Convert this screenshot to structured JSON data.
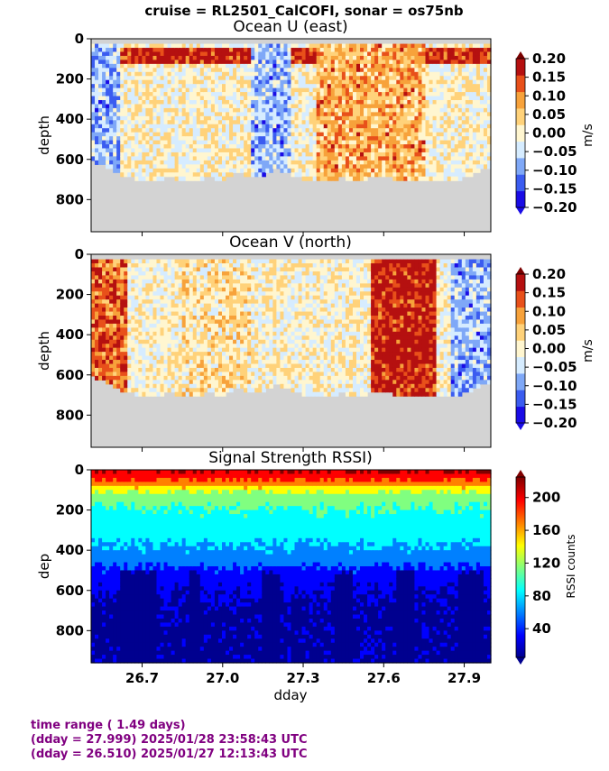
{
  "figure": {
    "suptitle": "cruise = RL2501_CalCOFI,  sonar = os75nb",
    "footer_lines": [
      "time range ( 1.49 days)",
      "(dday = 27.999) 2025/01/28 23:58:43 UTC",
      "(dday = 26.510) 2025/01/27 12:13:43 UTC"
    ],
    "text_color": "#800080"
  },
  "chart_data": [
    {
      "type": "heatmap",
      "title": "Ocean U (east)",
      "ylabel": "depth",
      "xlabel": "",
      "xlim": [
        26.51,
        27.999
      ],
      "ylim": [
        960,
        0
      ],
      "yticks": [
        "0",
        "200",
        "400",
        "600",
        "800"
      ],
      "colorbar": {
        "label": "m/s",
        "ticks": [
          "0.20",
          "0.15",
          "0.10",
          "0.05",
          "0.00",
          "−0.05",
          "−0.10",
          "−0.15",
          "−0.20"
        ],
        "range": [
          -0.2,
          0.2
        ],
        "colors": [
          "#1a0ce6",
          "#3b5cf0",
          "#7fa8f7",
          "#d6ecff",
          "#fff6d0",
          "#ffd27a",
          "#f7a23b",
          "#e8501a",
          "#b51010"
        ]
      },
      "no_data_color": "#d3d3d3",
      "bottom_depth_profile": {
        "dday": [
          26.51,
          26.55,
          26.6,
          26.65,
          26.7,
          26.75,
          26.8,
          26.85,
          26.9,
          26.95,
          27.0,
          27.05,
          27.1,
          27.15,
          27.2,
          27.25,
          27.3,
          27.35,
          27.4,
          27.45,
          27.5,
          27.55,
          27.6,
          27.65,
          27.7,
          27.75,
          27.8,
          27.85,
          27.9,
          27.95,
          27.999
        ],
        "depth": [
          600,
          610,
          650,
          680,
          690,
          690,
          680,
          690,
          690,
          680,
          690,
          660,
          670,
          670,
          640,
          660,
          690,
          700,
          690,
          680,
          700,
          680,
          670,
          690,
          700,
          700,
          720,
          730,
          680,
          650,
          630
        ]
      },
      "pattern": {
        "near_surface_band": {
          "depth_range": [
            30,
            120
          ],
          "dominant_values": [
            0.15,
            0.2
          ],
          "description_source": "red streaks"
        },
        "early_western_columns": {
          "dday_range": [
            26.51,
            26.62
          ],
          "dominant_values": [
            -0.1,
            -0.05
          ]
        },
        "mid_columns": {
          "dday_range": [
            27.1,
            27.25
          ],
          "dominant_values": [
            -0.1,
            -0.05
          ]
        },
        "eastern_columns": {
          "dday_range": [
            27.35,
            27.75
          ],
          "dominant_values": [
            0.05,
            0.1
          ]
        }
      }
    },
    {
      "type": "heatmap",
      "title": "Ocean V (north)",
      "ylabel": "depth",
      "xlabel": "",
      "xlim": [
        26.51,
        27.999
      ],
      "ylim": [
        960,
        0
      ],
      "yticks": [
        "0",
        "200",
        "400",
        "600",
        "800"
      ],
      "colorbar": {
        "label": "m/s",
        "ticks": [
          "0.20",
          "0.15",
          "0.10",
          "0.05",
          "0.00",
          "−0.05",
          "−0.10",
          "−0.15",
          "−0.20"
        ],
        "range": [
          -0.2,
          0.2
        ],
        "colors": [
          "#1a0ce6",
          "#3b5cf0",
          "#7fa8f7",
          "#d6ecff",
          "#fff6d0",
          "#ffd27a",
          "#f7a23b",
          "#e8501a",
          "#b51010"
        ]
      },
      "no_data_color": "#d3d3d3",
      "bottom_depth_profile": {
        "dday": [
          26.51,
          26.55,
          26.6,
          26.65,
          26.7,
          26.75,
          26.8,
          26.85,
          26.9,
          26.95,
          27.0,
          27.05,
          27.1,
          27.15,
          27.2,
          27.25,
          27.3,
          27.35,
          27.4,
          27.45,
          27.5,
          27.55,
          27.6,
          27.65,
          27.7,
          27.75,
          27.8,
          27.85,
          27.9,
          27.95,
          27.999
        ],
        "depth": [
          600,
          610,
          650,
          680,
          690,
          690,
          680,
          690,
          690,
          680,
          690,
          660,
          670,
          670,
          640,
          660,
          690,
          700,
          690,
          680,
          700,
          680,
          670,
          690,
          700,
          700,
          720,
          730,
          680,
          650,
          630
        ]
      },
      "pattern": {
        "western_columns": {
          "dday_range": [
            26.51,
            26.65
          ],
          "dominant_values": [
            0.1,
            0.15
          ]
        },
        "central_columns": {
          "dday_range": [
            26.85,
            27.1
          ],
          "dominant_values": [
            0.0,
            0.05
          ]
        },
        "eastern_core": {
          "dday_range": [
            27.55,
            27.8
          ],
          "dominant_values": [
            0.15,
            0.2
          ]
        },
        "far_east": {
          "dday_range": [
            27.85,
            27.999
          ],
          "dominant_values": [
            -0.05,
            -0.1
          ]
        }
      }
    },
    {
      "type": "heatmap",
      "title": "Signal Strength RSSI)",
      "ylabel": "dep",
      "xlabel": "dday",
      "xlim": [
        26.51,
        27.999
      ],
      "ylim": [
        960,
        0
      ],
      "yticks": [
        "0",
        "200",
        "400",
        "600",
        "800"
      ],
      "xticks": [
        "26.7",
        "27.0",
        "27.3",
        "27.6",
        "27.9"
      ],
      "xtick_values": [
        26.7,
        27.0,
        27.3,
        27.6,
        27.9
      ],
      "colorbar": {
        "label": "RSSI counts",
        "ticks": [
          "200",
          "160",
          "120",
          "80",
          "40"
        ],
        "tick_values": [
          200,
          160,
          120,
          80,
          40
        ],
        "range": [
          5,
          225
        ],
        "colors": [
          "#00008f",
          "#0000ff",
          "#0080ff",
          "#00ffff",
          "#80ff80",
          "#ffff00",
          "#ff8000",
          "#ff0000",
          "#800000"
        ]
      },
      "profile_by_depth": {
        "depth": [
          20,
          60,
          120,
          200,
          300,
          400,
          480,
          560,
          700,
          900
        ],
        "rssi": [
          200,
          170,
          120,
          100,
          90,
          75,
          55,
          35,
          25,
          25
        ]
      },
      "dark_bands_dday": [
        [
          26.62,
          26.75
        ],
        [
          26.88,
          26.92
        ],
        [
          27.15,
          27.22
        ],
        [
          27.42,
          27.49
        ],
        [
          27.65,
          27.72
        ],
        [
          27.88,
          27.97
        ]
      ]
    }
  ]
}
